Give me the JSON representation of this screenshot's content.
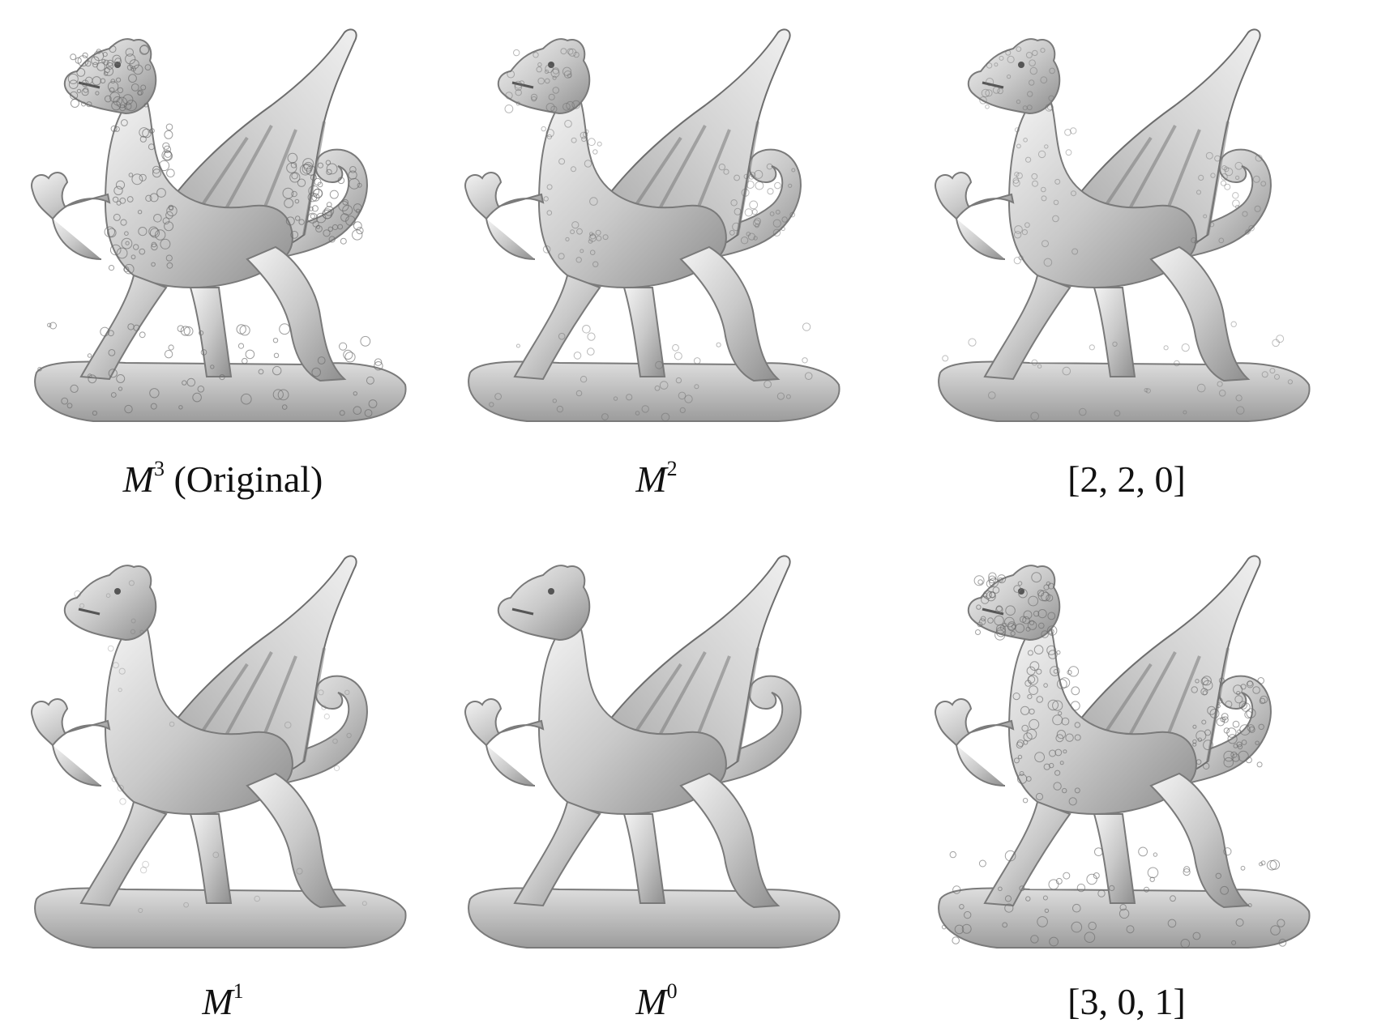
{
  "figure": {
    "panels": [
      {
        "symbol": "M",
        "sup": "3",
        "suffix": " (Original)",
        "text": "",
        "detail": 1.0
      },
      {
        "symbol": "M",
        "sup": "2",
        "suffix": "",
        "text": "",
        "detail": 0.55
      },
      {
        "symbol": "",
        "sup": "",
        "suffix": "",
        "text": "[2, 2, 0]",
        "detail": 0.45
      },
      {
        "symbol": "M",
        "sup": "1",
        "suffix": "",
        "text": "",
        "detail": 0.12
      },
      {
        "symbol": "M",
        "sup": "0",
        "suffix": "",
        "text": "",
        "detail": 0.0
      },
      {
        "symbol": "",
        "sup": "",
        "suffix": "",
        "text": "[3, 0, 1]",
        "detail": 0.95
      }
    ]
  }
}
